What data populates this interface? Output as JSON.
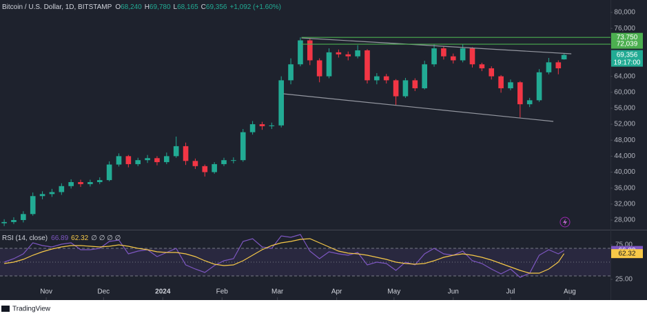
{
  "chart_data": {
    "type": "candlestick",
    "header": {
      "symbol": "Bitcoin / U.S. Dollar, 1D, BITSTAMP",
      "fields": [
        {
          "label": "O",
          "value": "68,240"
        },
        {
          "label": "H",
          "value": "69,780"
        },
        {
          "label": "L",
          "value": "68,165"
        },
        {
          "label": "C",
          "value": "69,356"
        }
      ],
      "change": "+1,092 (+1.60%)"
    },
    "x": [
      0,
      5,
      10,
      15,
      20,
      25,
      30,
      35,
      40,
      45,
      50,
      55,
      60,
      65,
      70,
      75,
      80,
      85,
      90,
      95,
      100,
      105,
      110,
      115,
      120,
      125,
      130,
      135,
      140,
      145,
      150,
      155,
      160,
      165,
      170,
      175,
      180,
      185,
      190,
      195,
      200,
      205,
      210,
      215,
      220,
      225,
      230,
      235,
      240,
      245,
      250,
      255,
      260,
      265,
      270,
      275,
      280,
      285,
      290,
      293
    ],
    "open": [
      27200,
      27500,
      28000,
      29500,
      34000,
      34500,
      35000,
      36500,
      37500,
      37000,
      37500,
      38000,
      41900,
      44000,
      42000,
      43000,
      43500,
      42500,
      44000,
      46500,
      42800,
      41500,
      40000,
      42000,
      43000,
      43000,
      50000,
      52000,
      51500,
      51700,
      63000,
      67000,
      73000,
      68000,
      64000,
      70000,
      69500,
      69000,
      70500,
      63000,
      64000,
      63000,
      59000,
      63000,
      61000,
      67000,
      71000,
      69000,
      68000,
      71000,
      67000,
      66000,
      64000,
      61000,
      62500,
      57000,
      58000,
      65000,
      67500,
      68240
    ],
    "high": [
      28200,
      28700,
      30200,
      34900,
      35200,
      35800,
      37200,
      38200,
      38100,
      38100,
      38700,
      42700,
      44700,
      44300,
      43600,
      44300,
      44000,
      44900,
      48900,
      47400,
      43400,
      41900,
      42500,
      43600,
      43700,
      50800,
      52800,
      52600,
      52400,
      64000,
      68500,
      73750,
      73400,
      68500,
      71000,
      70700,
      70200,
      71800,
      70800,
      64800,
      64600,
      63300,
      63600,
      63500,
      67900,
      72000,
      71500,
      69700,
      72000,
      71300,
      67400,
      66500,
      64300,
      63200,
      62800,
      58600,
      65800,
      68600,
      68000,
      69780
    ],
    "low": [
      26500,
      27000,
      27400,
      29100,
      33200,
      33800,
      34300,
      35900,
      36300,
      36400,
      37000,
      37700,
      41400,
      41200,
      41500,
      42300,
      41700,
      42000,
      43600,
      41800,
      40800,
      38900,
      39600,
      41500,
      42200,
      42600,
      49400,
      50600,
      50800,
      51200,
      62000,
      66500,
      66800,
      62500,
      63500,
      68700,
      68000,
      68500,
      62200,
      62000,
      62200,
      56800,
      58600,
      60300,
      60700,
      66400,
      68200,
      67200,
      67500,
      66200,
      65300,
      63200,
      59900,
      60500,
      53700,
      56300,
      57600,
      64500,
      64500,
      68165
    ],
    "close": [
      27500,
      28000,
      29500,
      34000,
      34500,
      35000,
      36500,
      37500,
      37000,
      37500,
      38000,
      41900,
      44000,
      42000,
      43000,
      43500,
      42500,
      44000,
      46500,
      42800,
      41500,
      40000,
      42000,
      43000,
      43000,
      50000,
      52000,
      51500,
      51700,
      63000,
      67000,
      73000,
      68000,
      64000,
      70000,
      69500,
      69000,
      70500,
      63000,
      64000,
      63000,
      59000,
      63000,
      61000,
      67000,
      71000,
      69000,
      68000,
      71000,
      67000,
      66000,
      64000,
      61000,
      62500,
      57000,
      58000,
      65000,
      67500,
      66000,
      69356
    ],
    "up_color": "#22ab94",
    "down_color": "#f23645",
    "xlim": [
      -2.2,
      317.3
    ],
    "xticks": [
      {
        "value": 22,
        "label": "Nov"
      },
      {
        "value": 52,
        "label": "Dec"
      },
      {
        "value": 83,
        "label": "2024"
      },
      {
        "value": 114,
        "label": "Feb"
      },
      {
        "value": 143,
        "label": "Mar"
      },
      {
        "value": 174,
        "label": "Apr"
      },
      {
        "value": 204,
        "label": "May"
      },
      {
        "value": 235,
        "label": "Jun"
      },
      {
        "value": 265,
        "label": "Jul"
      },
      {
        "value": 296,
        "label": "Aug"
      }
    ],
    "ylim": [
      25580,
      83110
    ],
    "yticks": [
      {
        "value": 80000,
        "label": "80,000"
      },
      {
        "value": 76000,
        "label": "76,000"
      },
      {
        "value": 72000,
        "label": "72,000"
      },
      {
        "value": 68000,
        "label": "68,000"
      },
      {
        "value": 64000,
        "label": "64,000"
      },
      {
        "value": 60000,
        "label": "60,000"
      },
      {
        "value": 56000,
        "label": "56,000"
      },
      {
        "value": 52000,
        "label": "52,000"
      },
      {
        "value": 48000,
        "label": "48,000"
      },
      {
        "value": 44000,
        "label": "44,000"
      },
      {
        "value": 40000,
        "label": "40,000"
      },
      {
        "value": 36000,
        "label": "36,000"
      },
      {
        "value": 32000,
        "label": "32,000"
      },
      {
        "value": 28000,
        "label": "28,000"
      }
    ],
    "trendlines": [
      {
        "x": [
          155.6,
          296.8
        ],
        "y": [
          73607,
          69633
        ],
        "color": "#9598a1"
      },
      {
        "x": [
          146.2,
          287.4
        ],
        "y": [
          59611,
          52700
        ],
        "color": "#9598a1"
      }
    ],
    "levels": [
      {
        "value": 73750,
        "label": "73,750",
        "x": 155.6,
        "color": "#4caf50"
      },
      {
        "value": 72039,
        "label": "72,039",
        "x": 155.6,
        "color": "#4caf50"
      }
    ],
    "last_price": {
      "value": 69356,
      "label": "69,356",
      "countdown": "19:17:00",
      "color": "#22ab94"
    },
    "rsi": {
      "title": "RSI (14, close)",
      "extras": "∅ ∅ ∅ ∅",
      "values": [
        50,
        55,
        62,
        78,
        74,
        72,
        76,
        78,
        68,
        68,
        70,
        80,
        82,
        62,
        66,
        68,
        58,
        64,
        70,
        46,
        40,
        35,
        45,
        52,
        55,
        80,
        84,
        72,
        70,
        88,
        86,
        90,
        66,
        55,
        65,
        62,
        60,
        64,
        46,
        50,
        48,
        38,
        50,
        46,
        62,
        70,
        62,
        60,
        66,
        52,
        48,
        40,
        33,
        40,
        28,
        34,
        60,
        68,
        62,
        66.89
      ],
      "ma_values": [
        48,
        50,
        54,
        60,
        65,
        69,
        72,
        74,
        74,
        73,
        72,
        73,
        75,
        73,
        70,
        68,
        65,
        64,
        64,
        62,
        58,
        52,
        47,
        45,
        46,
        52,
        60,
        68,
        74,
        78,
        80,
        83,
        84,
        78,
        72,
        66,
        63,
        62,
        60,
        57,
        54,
        50,
        48,
        47,
        48,
        52,
        57,
        60,
        62,
        60,
        57,
        53,
        48,
        43,
        38,
        34,
        34,
        40,
        50,
        62.32
      ],
      "color": "#7e57c2",
      "ma_color": "#f7c948",
      "ylim": [
        17,
        95
      ],
      "yticks": [
        {
          "value": 75,
          "label": "75.00"
        },
        {
          "value": 25,
          "label": "25.00"
        }
      ],
      "bands": [
        30,
        50,
        70
      ]
    },
    "brand": "TradingView"
  }
}
